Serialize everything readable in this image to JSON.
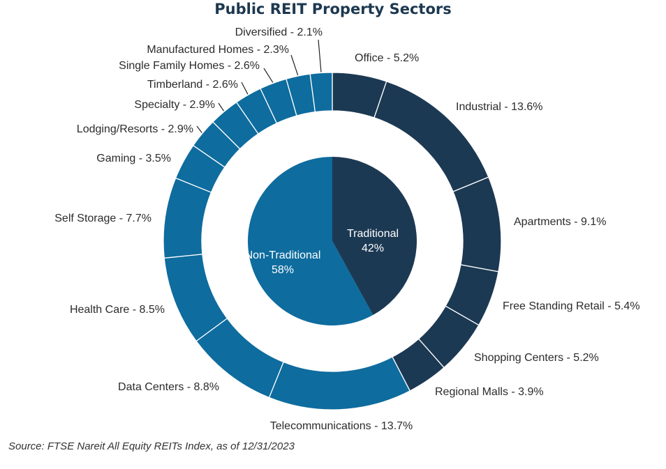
{
  "chart_data": {
    "type": "pie",
    "variant": "donut-with-inner-pie",
    "title": "Public REIT Property Sectors",
    "source": "Source: FTSE Nareit All Equity REITs Index, as of 12/31/2023",
    "colors": {
      "traditional": "#1c3953",
      "non_traditional": "#0e6c9e",
      "separator": "#ffffff"
    },
    "inner": [
      {
        "name": "Traditional",
        "value": 42,
        "value_label": "42%",
        "group": "traditional"
      },
      {
        "name": "Non-Traditional",
        "value": 58,
        "value_label": "58%",
        "group": "non_traditional"
      }
    ],
    "outer": [
      {
        "label": "Office - 5.2%",
        "value": 5.2,
        "group": "traditional"
      },
      {
        "label": "Industrial - 13.6%",
        "value": 13.6,
        "group": "traditional"
      },
      {
        "label": "Apartments - 9.1%",
        "value": 9.1,
        "group": "traditional"
      },
      {
        "label": "Free Standing Retail - 5.4%",
        "value": 5.4,
        "group": "traditional"
      },
      {
        "label": "Shopping Centers - 5.2%",
        "value": 5.2,
        "group": "traditional"
      },
      {
        "label": "Regional Malls - 3.9%",
        "value": 3.9,
        "group": "traditional"
      },
      {
        "label": "Telecommunications - 13.7%",
        "value": 13.7,
        "group": "non_traditional"
      },
      {
        "label": "Data Centers - 8.8%",
        "value": 8.8,
        "group": "non_traditional"
      },
      {
        "label": "Health Care - 8.5%",
        "value": 8.5,
        "group": "non_traditional"
      },
      {
        "label": "Self Storage - 7.7%",
        "value": 7.7,
        "group": "non_traditional"
      },
      {
        "label": "Gaming - 3.5%",
        "value": 3.5,
        "group": "non_traditional"
      },
      {
        "label": "Lodging/Resorts - 2.9%",
        "value": 2.9,
        "group": "non_traditional"
      },
      {
        "label": "Specialty - 2.9%",
        "value": 2.9,
        "group": "non_traditional"
      },
      {
        "label": "Timberland - 2.6%",
        "value": 2.6,
        "group": "non_traditional"
      },
      {
        "label": "Single Family Homes - 2.6%",
        "value": 2.6,
        "group": "non_traditional"
      },
      {
        "label": "Manufactured Homes - 2.3%",
        "value": 2.3,
        "group": "non_traditional"
      },
      {
        "label": "Diversified - 2.1%",
        "value": 2.1,
        "group": "non_traditional"
      }
    ]
  }
}
